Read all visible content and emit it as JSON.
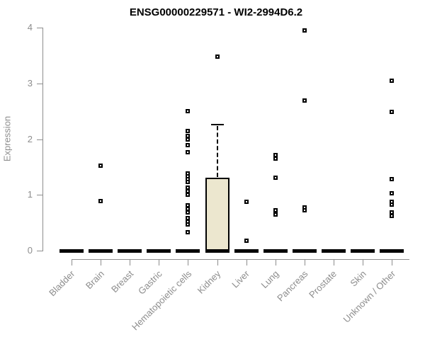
{
  "chart_data": {
    "type": "boxplot",
    "title": "ENSG00000229571 - WI2-2994D6.2",
    "ylabel": "Expression",
    "xlabel": "",
    "ylim": [
      0,
      4
    ],
    "yticks": [
      "0",
      "1",
      "2",
      "3",
      "4"
    ],
    "grid": false,
    "legend": false,
    "categories": [
      "Bladder",
      "Brain",
      "Breast",
      "Gastric",
      "Hematopoietic cells",
      "Kidney",
      "Liver",
      "Lung",
      "Pancreas",
      "Prostate",
      "Skin",
      "Unknown / Other"
    ],
    "series": [
      {
        "category": "Bladder",
        "median": 0,
        "q1": 0,
        "q3": 0,
        "whisker_low": 0,
        "whisker_high": 0,
        "points": []
      },
      {
        "category": "Brain",
        "median": 0,
        "q1": 0,
        "q3": 0,
        "whisker_low": 0,
        "whisker_high": 0,
        "points": [
          1.53,
          0.89
        ]
      },
      {
        "category": "Breast",
        "median": 0,
        "q1": 0,
        "q3": 0,
        "whisker_low": 0,
        "whisker_high": 0,
        "points": []
      },
      {
        "category": "Gastric",
        "median": 0,
        "q1": 0,
        "q3": 0,
        "whisker_low": 0,
        "whisker_high": 0,
        "points": []
      },
      {
        "category": "Hematopoietic cells",
        "median": 0,
        "q1": 0,
        "q3": 0,
        "whisker_low": 0,
        "whisker_high": 0,
        "points": [
          2.5,
          2.15,
          2.06,
          2.0,
          1.89,
          1.77,
          1.38,
          1.33,
          1.28,
          1.23,
          1.13,
          1.07,
          1.0,
          0.81,
          0.75,
          0.69,
          0.58,
          0.52,
          0.47,
          0.33
        ]
      },
      {
        "category": "Kidney",
        "median": 0,
        "q1": 0,
        "q3": 1.31,
        "whisker_low": 0,
        "whisker_high": 2.27,
        "points": [
          3.48
        ]
      },
      {
        "category": "Liver",
        "median": 0,
        "q1": 0,
        "q3": 0,
        "whisker_low": 0,
        "whisker_high": 0,
        "points": [
          0.87,
          0.18
        ]
      },
      {
        "category": "Lung",
        "median": 0,
        "q1": 0,
        "q3": 0,
        "whisker_low": 0,
        "whisker_high": 0,
        "points": [
          1.72,
          1.65,
          1.31,
          0.72,
          0.65
        ]
      },
      {
        "category": "Pancreas",
        "median": 0,
        "q1": 0,
        "q3": 0,
        "whisker_low": 0,
        "whisker_high": 0,
        "points": [
          3.95,
          2.69,
          0.78,
          0.72
        ]
      },
      {
        "category": "Prostate",
        "median": 0,
        "q1": 0,
        "q3": 0,
        "whisker_low": 0,
        "whisker_high": 0,
        "points": []
      },
      {
        "category": "Skin",
        "median": 0,
        "q1": 0,
        "q3": 0,
        "whisker_low": 0,
        "whisker_high": 0,
        "points": []
      },
      {
        "category": "Unknown / Other",
        "median": 0,
        "q1": 0,
        "q3": 0,
        "whisker_low": 0,
        "whisker_high": 0,
        "points": [
          3.05,
          2.49,
          1.28,
          1.03,
          0.88,
          0.83,
          0.68,
          0.62
        ]
      }
    ],
    "colors": {
      "box_fill": "#ece7cf",
      "box_border": "#000000",
      "point": "#000000",
      "axis": "#8d8d8d",
      "title": "#000000"
    }
  }
}
